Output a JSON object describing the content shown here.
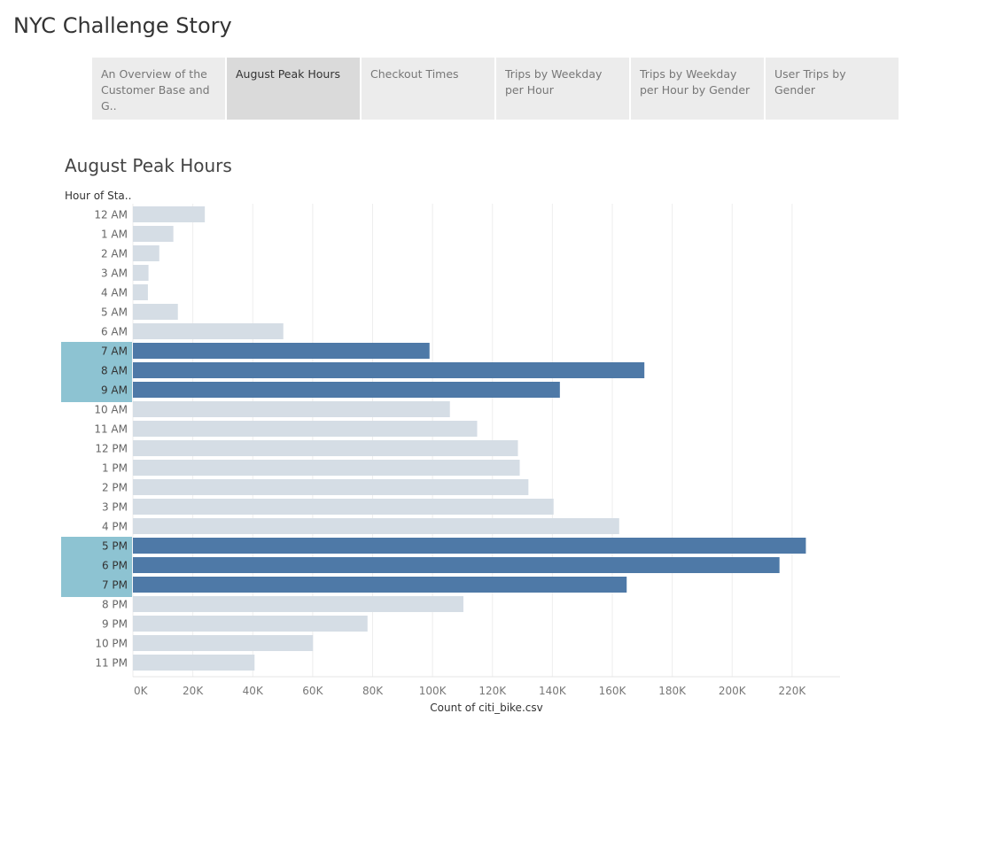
{
  "story": {
    "title": "NYC Challenge Story"
  },
  "tabs": [
    {
      "label": "An Overview of the Customer Base and G..",
      "active": false
    },
    {
      "label": "August Peak Hours",
      "active": true
    },
    {
      "label": "Checkout Times",
      "active": false
    },
    {
      "label": "Trips by Weekday per Hour",
      "active": false
    },
    {
      "label": "Trips by Weekday per Hour by  Gender",
      "active": false
    },
    {
      "label": "User Trips by Gender",
      "active": false
    }
  ],
  "sheet": {
    "title": "August Peak Hours",
    "dimension_header": "Hour of Sta.."
  },
  "colors": {
    "bar_default": "#d5dde5",
    "bar_highlight": "#4e79a7",
    "label_highlight_bg": "#8dc3d2",
    "grid": "#eeeeee"
  },
  "chart_data": {
    "type": "bar",
    "orientation": "horizontal",
    "categories": [
      "12 AM",
      "1 AM",
      "2 AM",
      "3 AM",
      "4 AM",
      "5 AM",
      "6 AM",
      "7 AM",
      "8 AM",
      "9 AM",
      "10 AM",
      "11 AM",
      "12 PM",
      "1 PM",
      "2 PM",
      "3 PM",
      "4 PM",
      "5 PM",
      "6 PM",
      "7 PM",
      "8 PM",
      "9 PM",
      "10 PM",
      "11 PM"
    ],
    "values": [
      24000,
      13500,
      8800,
      5200,
      5000,
      15000,
      50200,
      99000,
      170700,
      142500,
      105800,
      114900,
      128500,
      129100,
      132000,
      140400,
      162300,
      224600,
      215800,
      164800,
      110300,
      78300,
      60100,
      40600
    ],
    "highlighted": [
      "7 AM",
      "8 AM",
      "9 AM",
      "5 PM",
      "6 PM",
      "7 PM"
    ],
    "xlabel": "Count of citi_bike.csv",
    "ylabel": "Hour of Sta..",
    "xlim": [
      0,
      236000
    ],
    "xticks": [
      0,
      20000,
      40000,
      60000,
      80000,
      100000,
      120000,
      140000,
      160000,
      180000,
      200000,
      220000
    ],
    "xtick_labels": [
      "0K",
      "20K",
      "40K",
      "60K",
      "80K",
      "100K",
      "120K",
      "140K",
      "160K",
      "180K",
      "200K",
      "220K"
    ],
    "grid": true
  }
}
